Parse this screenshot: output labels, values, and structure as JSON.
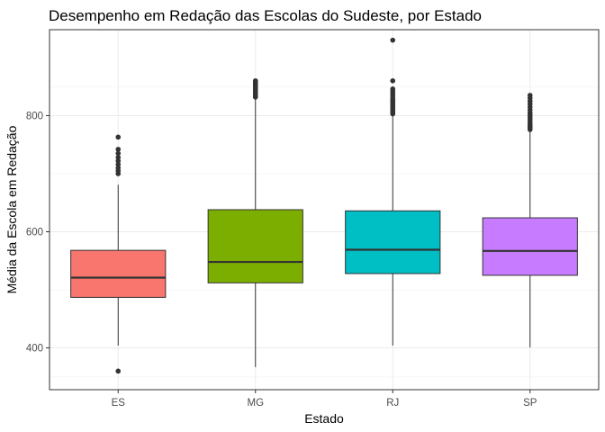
{
  "chart_data": {
    "type": "box",
    "title": "Desempenho em Redação das Escolas do Sudeste, por Estado",
    "xlabel": "Estado",
    "ylabel": "Média da Escola em Redação",
    "categories": [
      "ES",
      "MG",
      "RJ",
      "SP"
    ],
    "ylim": [
      328,
      948
    ],
    "yticks": [
      400,
      600,
      800
    ],
    "grid": true,
    "legend": "none",
    "boxes": [
      {
        "category": "ES",
        "color": "#F8766D",
        "whisker_low": 404,
        "q1": 487,
        "median": 521,
        "q3": 568,
        "whisker_high": 681,
        "outliers": [
          360,
          700,
          705,
          710,
          716,
          722,
          728,
          735,
          742,
          763
        ]
      },
      {
        "category": "MG",
        "color": "#7CAE00",
        "whisker_low": 367,
        "q1": 512,
        "median": 548,
        "q3": 638,
        "whisker_high": 828,
        "outliers": [
          832,
          835,
          838,
          841,
          844,
          847,
          850,
          853,
          856,
          858,
          860
        ]
      },
      {
        "category": "RJ",
        "color": "#00BFC4",
        "whisker_low": 404,
        "q1": 528,
        "median": 569,
        "q3": 636,
        "whisker_high": 800,
        "outliers": [
          803,
          806,
          809,
          812,
          815,
          818,
          821,
          824,
          827,
          830,
          834,
          838,
          842,
          846,
          860,
          930
        ]
      },
      {
        "category": "SP",
        "color": "#C77CFF",
        "whisker_low": 401,
        "q1": 525,
        "median": 567,
        "q3": 624,
        "whisker_high": 773,
        "outliers": [
          776,
          779,
          782,
          785,
          789,
          793,
          797,
          801,
          805,
          810,
          815,
          820,
          825,
          830,
          835
        ]
      }
    ]
  }
}
